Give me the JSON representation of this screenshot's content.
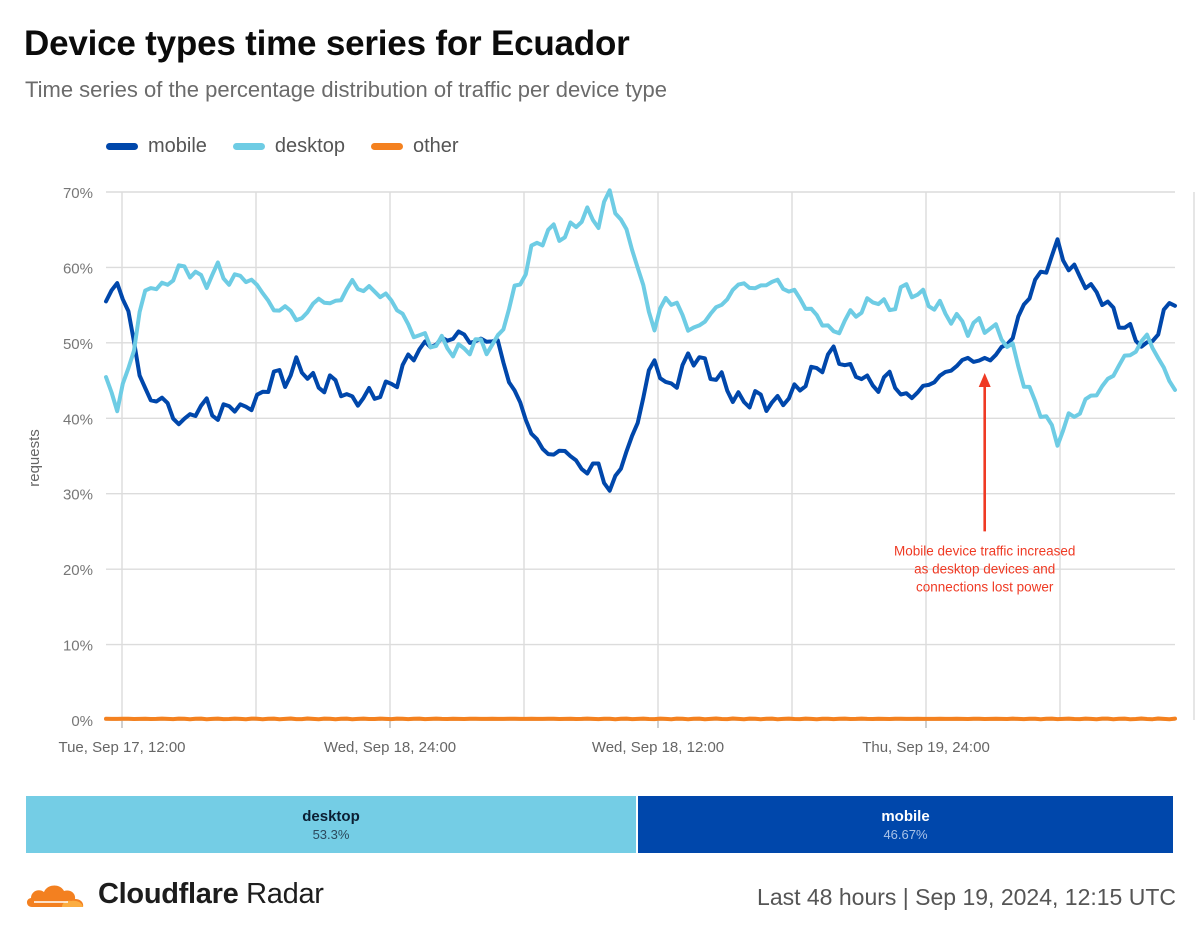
{
  "title": "Device types time series for Ecuador",
  "subtitle": "Time series of the percentage distribution of traffic per device type",
  "colors": {
    "mobile": "#0047ab",
    "desktop": "#6ecce4",
    "other": "#f4811f",
    "annotation": "#ef3a24",
    "grid": "#dddddd",
    "brand": "#f38020"
  },
  "legend": [
    {
      "key": "mobile",
      "label": "mobile"
    },
    {
      "key": "desktop",
      "label": "desktop"
    },
    {
      "key": "other",
      "label": "other"
    }
  ],
  "chart_data": {
    "type": "line",
    "ylabel": "requests",
    "ylim": [
      0,
      70
    ],
    "yticks": [
      "0%",
      "10%",
      "20%",
      "30%",
      "40%",
      "50%",
      "60%",
      "70%"
    ],
    "xticks": [
      "Tue, Sep 17, 12:00",
      "Wed, Sep 18, 24:00",
      "Wed, Sep 18, 12:00",
      "Thu, Sep 19, 24:00"
    ],
    "points_per_series": 192,
    "series": [
      {
        "name": "mobile",
        "color": "#0047ab",
        "keyframes": [
          [
            0,
            55.5
          ],
          [
            2,
            58
          ],
          [
            4,
            54
          ],
          [
            6,
            46
          ],
          [
            8,
            42
          ],
          [
            10,
            43
          ],
          [
            12,
            40
          ],
          [
            14,
            39.5
          ],
          [
            16,
            41
          ],
          [
            18,
            42
          ],
          [
            20,
            40
          ],
          [
            22,
            42
          ],
          [
            24,
            41
          ],
          [
            26,
            42
          ],
          [
            28,
            43
          ],
          [
            30,
            46
          ],
          [
            32,
            45
          ],
          [
            34,
            47
          ],
          [
            36,
            46
          ],
          [
            38,
            44
          ],
          [
            40,
            45
          ],
          [
            42,
            44
          ],
          [
            44,
            42
          ],
          [
            46,
            43
          ],
          [
            48,
            43
          ],
          [
            50,
            44
          ],
          [
            52,
            45
          ],
          [
            54,
            48
          ],
          [
            56,
            49
          ],
          [
            58,
            50
          ],
          [
            60,
            50
          ],
          [
            62,
            51
          ],
          [
            64,
            51
          ],
          [
            66,
            50
          ],
          [
            68,
            50.5
          ],
          [
            70,
            50
          ],
          [
            72,
            45
          ],
          [
            74,
            42
          ],
          [
            76,
            38
          ],
          [
            78,
            36
          ],
          [
            80,
            35
          ],
          [
            82,
            36
          ],
          [
            84,
            34
          ],
          [
            86,
            33
          ],
          [
            88,
            34
          ],
          [
            90,
            30
          ],
          [
            92,
            34
          ],
          [
            94,
            37
          ],
          [
            96,
            43
          ],
          [
            98,
            48
          ],
          [
            100,
            44
          ],
          [
            102,
            45
          ],
          [
            104,
            48
          ],
          [
            106,
            48
          ],
          [
            108,
            46
          ],
          [
            110,
            45
          ],
          [
            112,
            43
          ],
          [
            114,
            42
          ],
          [
            116,
            43
          ],
          [
            118,
            42
          ],
          [
            120,
            42
          ],
          [
            122,
            43
          ],
          [
            124,
            44
          ],
          [
            126,
            46
          ],
          [
            128,
            47
          ],
          [
            130,
            49
          ],
          [
            132,
            47
          ],
          [
            134,
            46
          ],
          [
            136,
            45
          ],
          [
            138,
            44
          ],
          [
            140,
            46
          ],
          [
            142,
            43
          ],
          [
            144,
            43
          ],
          [
            146,
            44
          ],
          [
            148,
            45
          ],
          [
            150,
            46
          ],
          [
            152,
            47
          ],
          [
            154,
            48
          ],
          [
            156,
            47.5
          ],
          [
            158,
            48
          ],
          [
            160,
            49
          ],
          [
            162,
            51
          ],
          [
            164,
            55
          ],
          [
            166,
            58
          ],
          [
            168,
            60
          ],
          [
            170,
            63
          ],
          [
            172,
            60
          ],
          [
            174,
            59
          ],
          [
            176,
            57
          ],
          [
            178,
            56
          ],
          [
            180,
            54
          ],
          [
            182,
            52
          ],
          [
            184,
            51
          ],
          [
            186,
            49
          ],
          [
            188,
            52
          ],
          [
            190,
            55
          ],
          [
            191,
            56
          ]
        ],
        "values": []
      },
      {
        "name": "desktop",
        "color": "#6ecce4",
        "keyframes": [
          [
            0,
            44.5
          ],
          [
            2,
            42
          ],
          [
            4,
            46
          ],
          [
            6,
            54
          ],
          [
            8,
            58
          ],
          [
            10,
            57
          ],
          [
            12,
            59
          ],
          [
            14,
            60
          ],
          [
            16,
            59
          ],
          [
            18,
            58
          ],
          [
            20,
            60
          ],
          [
            22,
            58
          ],
          [
            24,
            59
          ],
          [
            26,
            58
          ],
          [
            28,
            57
          ],
          [
            30,
            54
          ],
          [
            32,
            55
          ],
          [
            34,
            53
          ],
          [
            36,
            54
          ],
          [
            38,
            56
          ],
          [
            40,
            55
          ],
          [
            42,
            56
          ],
          [
            44,
            58
          ],
          [
            46,
            57
          ],
          [
            48,
            57
          ],
          [
            50,
            56
          ],
          [
            52,
            55
          ],
          [
            54,
            52
          ],
          [
            56,
            51
          ],
          [
            58,
            50
          ],
          [
            60,
            50
          ],
          [
            62,
            49
          ],
          [
            64,
            49
          ],
          [
            66,
            50
          ],
          [
            68,
            49.5
          ],
          [
            70,
            50
          ],
          [
            72,
            55
          ],
          [
            74,
            58
          ],
          [
            76,
            62
          ],
          [
            78,
            64
          ],
          [
            80,
            65
          ],
          [
            82,
            64
          ],
          [
            84,
            66
          ],
          [
            86,
            67
          ],
          [
            88,
            66
          ],
          [
            90,
            70
          ],
          [
            92,
            66
          ],
          [
            94,
            63
          ],
          [
            96,
            57
          ],
          [
            98,
            52
          ],
          [
            100,
            56
          ],
          [
            102,
            55
          ],
          [
            104,
            52
          ],
          [
            106,
            52
          ],
          [
            108,
            54
          ],
          [
            110,
            55
          ],
          [
            112,
            57
          ],
          [
            114,
            58
          ],
          [
            116,
            57
          ],
          [
            118,
            58
          ],
          [
            120,
            58
          ],
          [
            122,
            57
          ],
          [
            124,
            56
          ],
          [
            126,
            54
          ],
          [
            128,
            53
          ],
          [
            130,
            51
          ],
          [
            132,
            53
          ],
          [
            134,
            54
          ],
          [
            136,
            55
          ],
          [
            138,
            56
          ],
          [
            140,
            54
          ],
          [
            142,
            57
          ],
          [
            144,
            57
          ],
          [
            146,
            56
          ],
          [
            148,
            55
          ],
          [
            150,
            54
          ],
          [
            152,
            53
          ],
          [
            154,
            52
          ],
          [
            156,
            52.5
          ],
          [
            158,
            52
          ],
          [
            160,
            51
          ],
          [
            162,
            49
          ],
          [
            164,
            45
          ],
          [
            166,
            42
          ],
          [
            168,
            40
          ],
          [
            170,
            37
          ],
          [
            172,
            40
          ],
          [
            174,
            41
          ],
          [
            176,
            43
          ],
          [
            178,
            44
          ],
          [
            180,
            46
          ],
          [
            182,
            48
          ],
          [
            184,
            49
          ],
          [
            186,
            51
          ],
          [
            188,
            48
          ],
          [
            190,
            45
          ],
          [
            191,
            44
          ]
        ],
        "values": []
      },
      {
        "name": "other",
        "color": "#f4811f",
        "keyframes": [
          [
            0,
            0.15
          ],
          [
            191,
            0.15
          ]
        ],
        "values": []
      }
    ],
    "annotation": {
      "text_lines": [
        "Mobile device traffic increased",
        "as desktop devices and",
        "connections lost power"
      ],
      "arrow_index": 157,
      "arrow_from": 25,
      "arrow_to": 46
    }
  },
  "summary": [
    {
      "label": "desktop",
      "percent": "53.3%"
    },
    {
      "label": "mobile",
      "percent": "46.67%"
    }
  ],
  "summary_values": [
    53.3,
    46.67
  ],
  "footer": {
    "brand_bold": "Cloudflare",
    "brand_light": " Radar",
    "range_text": "Last 48 hours | Sep 19, 2024, 12:15 UTC"
  }
}
